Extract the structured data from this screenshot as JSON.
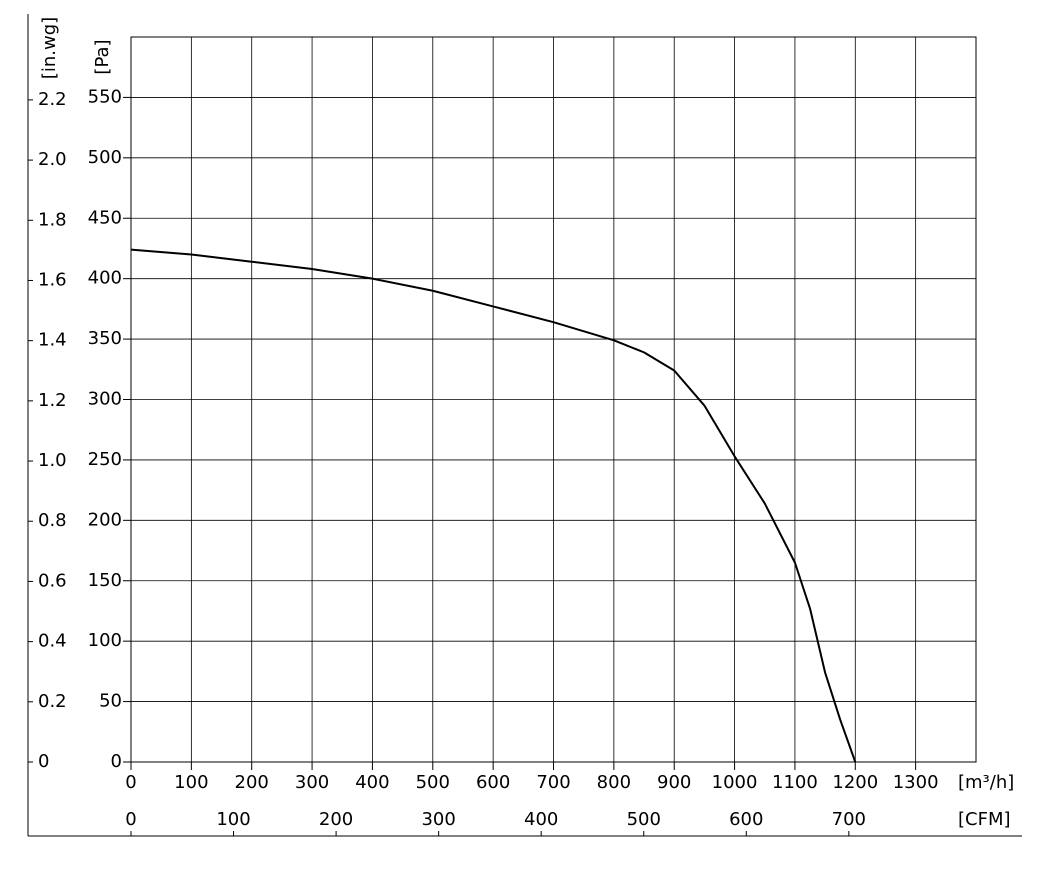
{
  "chart_data": {
    "type": "line",
    "x": [
      0,
      100,
      200,
      300,
      400,
      500,
      600,
      700,
      800,
      850,
      900,
      950,
      1000,
      1050,
      1100,
      1125,
      1150,
      1175,
      1200
    ],
    "series": [
      {
        "color": "#000000",
        "values": [
          424,
          420,
          414,
          408,
          400,
          390,
          377,
          364,
          349,
          339,
          324,
          295,
          253,
          214,
          165,
          127,
          74,
          35,
          0
        ]
      }
    ],
    "xlim": [
      0,
      1400
    ],
    "xticks": [
      0,
      100,
      200,
      300,
      400,
      500,
      600,
      700,
      800,
      900,
      1000,
      1100,
      1200,
      1300
    ],
    "x_unit": "[m³/h]",
    "ylim": [
      0,
      600
    ],
    "yticks": [
      0,
      50,
      100,
      150,
      200,
      250,
      300,
      350,
      400,
      450,
      500,
      550
    ],
    "y_unit": "[Pa]",
    "y2lim": [
      0,
      2.409
    ],
    "y2ticks": [
      0,
      0.2,
      0.4,
      0.6,
      0.8,
      {
        "value": 1,
        "label": "1.0"
      },
      1.2,
      1.4,
      1.6,
      1.8,
      {
        "value": 2,
        "label": "2.0"
      },
      2.2
    ],
    "y2_unit": "[in.wg]",
    "x2lim": [
      0,
      824
    ],
    "x2ticks": [
      0,
      100,
      200,
      300,
      400,
      500,
      600,
      700
    ],
    "x2_unit": "[CFM]",
    "grid": true
  }
}
